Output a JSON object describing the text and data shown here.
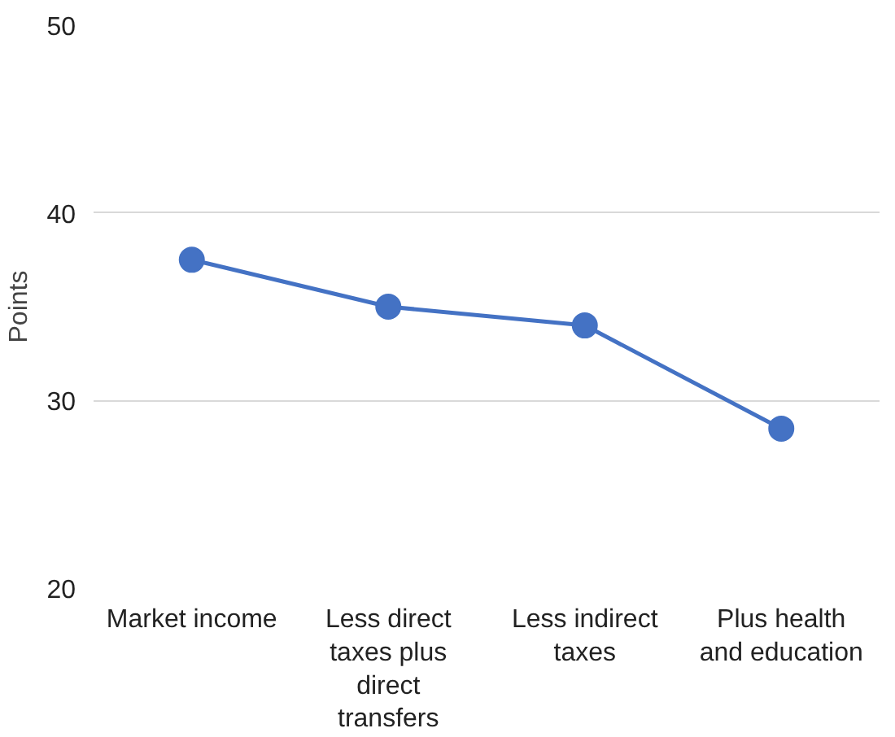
{
  "chart_data": {
    "type": "line",
    "ylabel": "Points",
    "categories": [
      "Market income",
      "Less direct taxes plus direct transfers",
      "Less indirect taxes",
      "Plus health and education"
    ],
    "series": [
      {
        "color": "#4472c4",
        "values": [
          37.5,
          35.0,
          34.0,
          28.5
        ]
      }
    ],
    "ylim": [
      20,
      50
    ],
    "yticks": [
      20,
      30,
      40,
      50
    ],
    "grid": "y",
    "marker": "circle",
    "line_style": "solid"
  }
}
